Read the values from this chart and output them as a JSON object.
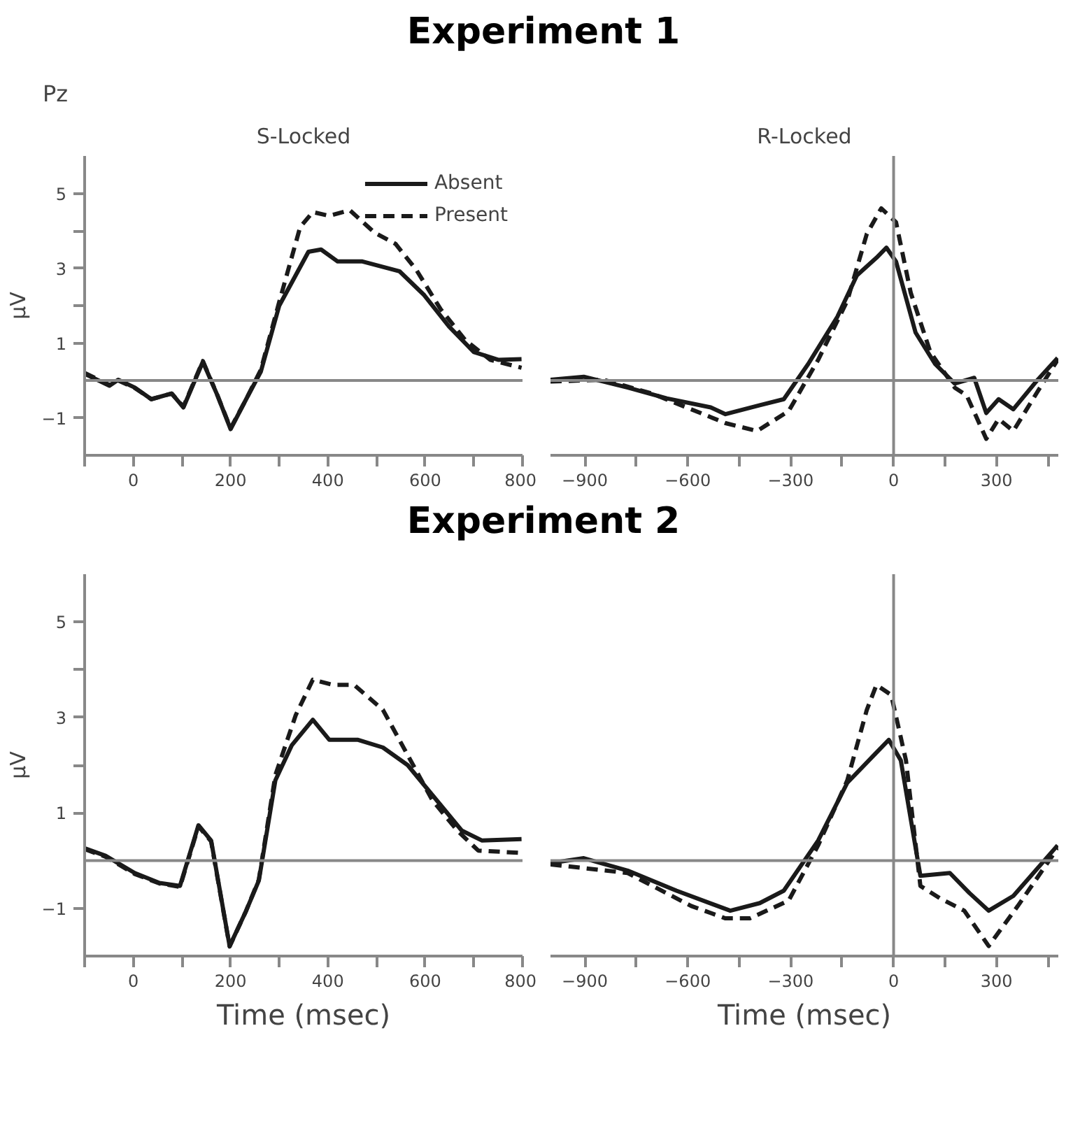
{
  "chart_data": [
    {
      "type": "line",
      "title": "Experiment 1",
      "subtitle": "S-Locked",
      "ylabel": "μV",
      "annotations": [
        "Pz"
      ],
      "legend": "top right",
      "grid": false,
      "marker": "none",
      "xlim": [
        -100,
        800
      ],
      "ylim": [
        -2,
        6
      ],
      "xticks": [
        {
          "value": -100,
          "label": null
        },
        0,
        {
          "value": 100,
          "label": null
        },
        200,
        {
          "value": 300,
          "label": null
        },
        400,
        {
          "value": 500,
          "label": null
        },
        600,
        {
          "value": 700,
          "label": null
        },
        800
      ],
      "yticks": [
        {
          "value": -1,
          "label": "−1"
        },
        1,
        {
          "value": 2,
          "label": null
        },
        3,
        {
          "value": 4,
          "label": null
        },
        5
      ],
      "ref_lines": [
        {
          "axis": "y",
          "value": 0,
          "color": "#888888"
        }
      ],
      "series": [
        {
          "name": "Absent",
          "color": "#1a1a1a",
          "line_style": "solid",
          "x": [
            -100,
            -49,
            -31,
            3,
            37,
            79,
            103,
            143,
            173,
            200,
            232,
            262,
            300,
            360,
            386,
            420,
            471,
            547,
            598,
            649,
            700,
            751,
            798
          ],
          "values": [
            0.18,
            -0.14,
            0.02,
            -0.19,
            -0.5,
            -0.35,
            -0.72,
            0.5,
            -0.4,
            -1.3,
            -0.5,
            0.23,
            2.0,
            3.44,
            3.5,
            3.18,
            3.18,
            2.92,
            2.28,
            1.44,
            0.76,
            0.55,
            0.57
          ]
        },
        {
          "name": "Present",
          "color": "#1a1a1a",
          "line_style": "dashed",
          "x": [
            -100,
            -49,
            -31,
            3,
            37,
            79,
            103,
            143,
            173,
            200,
            232,
            262,
            300,
            343,
            369,
            403,
            445,
            496,
            539,
            581,
            632,
            683,
            734,
            798
          ],
          "values": [
            0.2,
            -0.12,
            0.0,
            -0.2,
            -0.5,
            -0.35,
            -0.7,
            0.52,
            -0.4,
            -1.28,
            -0.5,
            0.28,
            2.1,
            4.1,
            4.5,
            4.4,
            4.55,
            3.95,
            3.65,
            2.97,
            1.9,
            1.07,
            0.55,
            0.34
          ]
        }
      ]
    },
    {
      "type": "line",
      "subtitle": "R-Locked",
      "tick_labels": "x",
      "grid": false,
      "marker": "none",
      "xlim": [
        -1000,
        480
      ],
      "ylim": [
        -2,
        6
      ],
      "xticks": [
        {
          "value": -900,
          "label": "−900"
        },
        {
          "value": -750,
          "label": null
        },
        {
          "value": -600,
          "label": "−600"
        },
        {
          "value": -450,
          "label": null
        },
        {
          "value": -300,
          "label": "−300"
        },
        {
          "value": -150,
          "label": null
        },
        0,
        {
          "value": 150,
          "label": null
        },
        300,
        {
          "value": 450,
          "label": null
        }
      ],
      "ref_lines": [
        {
          "axis": "y",
          "value": 0,
          "color": "#888888"
        },
        {
          "axis": "x",
          "value": 0,
          "color": "#888888"
        }
      ],
      "series": [
        {
          "color": "#1a1a1a",
          "line_style": "solid",
          "x": [
            -1000,
            -903,
            -775,
            -661,
            -533,
            -490,
            -390,
            -320,
            -249,
            -164,
            -107,
            -50,
            -21,
            7,
            64,
            121,
            178,
            235,
            270,
            306,
            349,
            420,
            478
          ],
          "values": [
            0.02,
            0.1,
            -0.19,
            -0.48,
            -0.72,
            -0.9,
            -0.66,
            -0.5,
            0.44,
            1.7,
            2.81,
            3.28,
            3.55,
            3.18,
            1.28,
            0.44,
            -0.08,
            0.07,
            -0.87,
            -0.5,
            -0.77,
            0.02,
            0.6
          ]
        },
        {
          "color": "#1a1a1a",
          "line_style": "dashed",
          "x": [
            -1000,
            -846,
            -704,
            -590,
            -490,
            -398,
            -306,
            -220,
            -135,
            -78,
            -36,
            7,
            50,
            107,
            178,
            213,
            270,
            306,
            349,
            420,
            478
          ],
          "values": [
            -0.03,
            0.02,
            -0.35,
            -0.77,
            -1.14,
            -1.35,
            -0.82,
            0.55,
            2.13,
            3.92,
            4.6,
            4.23,
            2.34,
            0.76,
            -0.19,
            -0.4,
            -1.56,
            -1.03,
            -1.35,
            -0.29,
            0.55
          ]
        }
      ]
    },
    {
      "type": "line",
      "title": "Experiment 2",
      "ylabel": "μV",
      "xlabel": "Time (msec)",
      "grid": false,
      "marker": "none",
      "xlim": [
        -100,
        800
      ],
      "ylim": [
        -2,
        6
      ],
      "xticks": [
        {
          "value": -100,
          "label": null
        },
        0,
        {
          "value": 100,
          "label": null
        },
        200,
        {
          "value": 300,
          "label": null
        },
        400,
        {
          "value": 500,
          "label": null
        },
        600,
        {
          "value": 700,
          "label": null
        },
        800
      ],
      "yticks": [
        {
          "value": -1,
          "label": "−1"
        },
        1,
        {
          "value": 2,
          "label": null
        },
        3,
        {
          "value": 4,
          "label": null
        },
        5
      ],
      "ref_lines": [
        {
          "axis": "y",
          "value": 0,
          "color": "#888888"
        }
      ],
      "series": [
        {
          "color": "#1a1a1a",
          "line_style": "solid",
          "x": [
            -100,
            -57,
            3,
            54,
            96,
            134,
            160,
            198,
            232,
            258,
            292,
            326,
            369,
            403,
            462,
            513,
            564,
            615,
            675,
            717,
            798
          ],
          "values": [
            0.26,
            0.1,
            -0.26,
            -0.47,
            -0.53,
            0.74,
            0.42,
            -1.79,
            -1.05,
            -0.42,
            1.68,
            2.42,
            2.95,
            2.53,
            2.53,
            2.37,
            2.0,
            1.37,
            0.63,
            0.42,
            0.45
          ]
        },
        {
          "color": "#1a1a1a",
          "line_style": "dashed",
          "x": [
            -100,
            -57,
            3,
            54,
            96,
            134,
            160,
            198,
            232,
            258,
            292,
            334,
            369,
            411,
            454,
            513,
            564,
            615,
            666,
            709,
            798
          ],
          "values": [
            0.24,
            0.08,
            -0.28,
            -0.48,
            -0.55,
            0.72,
            0.4,
            -1.8,
            -1.05,
            -0.4,
            1.79,
            3.05,
            3.79,
            3.68,
            3.68,
            3.16,
            2.21,
            1.26,
            0.63,
            0.21,
            0.16
          ]
        }
      ]
    },
    {
      "type": "line",
      "xlabel": "Time (msec)",
      "tick_labels": "x",
      "grid": false,
      "marker": "none",
      "xlim": [
        -1000,
        480
      ],
      "ylim": [
        -2,
        6
      ],
      "xticks": [
        {
          "value": -900,
          "label": "−900"
        },
        {
          "value": -750,
          "label": null
        },
        {
          "value": -600,
          "label": "−600"
        },
        {
          "value": -450,
          "label": null
        },
        {
          "value": -300,
          "label": "−300"
        },
        {
          "value": -150,
          "label": null
        },
        0,
        {
          "value": 150,
          "label": null
        },
        300,
        {
          "value": 450,
          "label": null
        }
      ],
      "ref_lines": [
        {
          "axis": "y",
          "value": 0,
          "color": "#888888"
        },
        {
          "axis": "x",
          "value": 0,
          "color": "#888888"
        }
      ],
      "series": [
        {
          "color": "#1a1a1a",
          "line_style": "solid",
          "x": [
            -1000,
            -903,
            -775,
            -633,
            -476,
            -390,
            -320,
            -220,
            -135,
            -64,
            -14,
            21,
            78,
            164,
            221,
            277,
            349,
            478
          ],
          "values": [
            -0.05,
            0.05,
            -0.21,
            -0.63,
            -1.05,
            -0.89,
            -0.63,
            0.42,
            1.63,
            2.16,
            2.53,
            2.1,
            -0.32,
            -0.26,
            -0.68,
            -1.05,
            -0.74,
            0.32
          ]
        },
        {
          "color": "#1a1a1a",
          "line_style": "dashed",
          "x": [
            -1000,
            -775,
            -590,
            -490,
            -419,
            -306,
            -220,
            -135,
            -78,
            -50,
            -7,
            36,
            78,
            135,
            206,
            277,
            362,
            478
          ],
          "values": [
            -0.08,
            -0.26,
            -0.95,
            -1.21,
            -1.21,
            -0.84,
            0.32,
            1.68,
            3.16,
            3.68,
            3.47,
            2.1,
            -0.53,
            -0.79,
            -1.05,
            -1.79,
            -0.95,
            0.26
          ]
        }
      ]
    }
  ]
}
